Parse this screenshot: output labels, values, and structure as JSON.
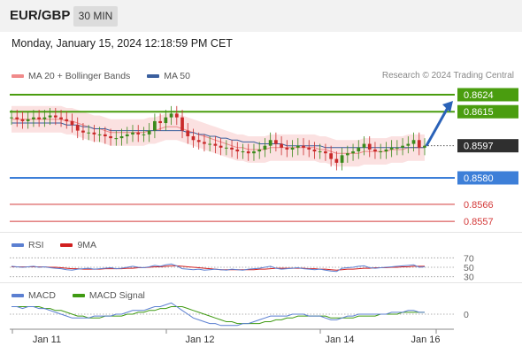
{
  "header": {
    "symbol": "EUR/GBP",
    "timeframe": "30 MIN",
    "datetime": "Monday, January 15, 2024 12:18:59 PM CET"
  },
  "legend": {
    "ma20_label": "MA 20 + Bollinger Bands",
    "ma20_color": "#f08a8a",
    "ma50_label": "MA 50",
    "ma50_color": "#3a5f9e",
    "research": "Research © 2024 Trading Central"
  },
  "rsi_legend": {
    "rsi_label": "RSI",
    "rsi_color": "#5b7fd1",
    "ma_label": "9MA",
    "ma_color": "#d11f1f"
  },
  "macd_legend": {
    "macd_label": "MACD",
    "macd_color": "#5b7fd1",
    "signal_label": "MACD Signal",
    "signal_color": "#3f9a12"
  },
  "chart_data": [
    {
      "type": "candlestick",
      "title": "EUR/GBP",
      "ylim": [
        0.855,
        0.863
      ],
      "x_ticks": [
        "Jan 11",
        "Jan 12",
        "Jan 14",
        "Jan 16"
      ],
      "current_price": "0.8597",
      "levels": [
        {
          "value": 0.8624,
          "label": "0.8624",
          "color": "#4a9d0f",
          "kind": "resistance"
        },
        {
          "value": 0.8615,
          "label": "0.8615",
          "color": "#4a9d0f",
          "kind": "resistance"
        },
        {
          "value": 0.858,
          "label": "0.8580",
          "color": "#3d7fd8",
          "kind": "pivot"
        },
        {
          "value": 0.8566,
          "label": "0.8566",
          "color": "#d43a3a",
          "kind": "support"
        },
        {
          "value": 0.8557,
          "label": "0.8557",
          "color": "#d43a3a",
          "kind": "support"
        }
      ],
      "projection": {
        "from": 0.8597,
        "to": 0.8624,
        "color": "#2a62b8"
      },
      "series_note": "approximate closes",
      "closes": [
        0.8612,
        0.8611,
        0.861,
        0.8611,
        0.8612,
        0.8611,
        0.8612,
        0.8613,
        0.8612,
        0.8611,
        0.861,
        0.8608,
        0.8605,
        0.8604,
        0.8604,
        0.8603,
        0.8603,
        0.8602,
        0.8601,
        0.8601,
        0.8602,
        0.8603,
        0.8604,
        0.8603,
        0.8603,
        0.8605,
        0.861,
        0.8609,
        0.8612,
        0.8614,
        0.8612,
        0.8605,
        0.8602,
        0.86,
        0.8599,
        0.8598,
        0.8598,
        0.8597,
        0.8596,
        0.8596,
        0.8595,
        0.8594,
        0.8594,
        0.8593,
        0.8594,
        0.8595,
        0.8597,
        0.86,
        0.8598,
        0.8596,
        0.8595,
        0.8596,
        0.8597,
        0.8596,
        0.8595,
        0.8594,
        0.8594,
        0.8593,
        0.859,
        0.8588,
        0.8592,
        0.8593,
        0.8594,
        0.8596,
        0.8598,
        0.8595,
        0.8594,
        0.8594,
        0.8595,
        0.8596,
        0.8596,
        0.8597,
        0.8598,
        0.86,
        0.8596,
        0.8597
      ],
      "ma20": [
        0.8611,
        0.8611,
        0.8611,
        0.8611,
        0.8611,
        0.8611,
        0.8611,
        0.8611,
        0.8611,
        0.8611,
        0.861,
        0.861,
        0.8609,
        0.8608,
        0.8607,
        0.8606,
        0.8606,
        0.8605,
        0.8604,
        0.8604,
        0.8604,
        0.8604,
        0.8604,
        0.8604,
        0.8604,
        0.8605,
        0.8605,
        0.8606,
        0.8607,
        0.8607,
        0.8607,
        0.8606,
        0.8605,
        0.8604,
        0.8603,
        0.8602,
        0.8601,
        0.86,
        0.8599,
        0.8598,
        0.8597,
        0.8596,
        0.8596,
        0.8595,
        0.8595,
        0.8595,
        0.8595,
        0.8596,
        0.8596,
        0.8596,
        0.8596,
        0.8596,
        0.8596,
        0.8596,
        0.8596,
        0.8596,
        0.8595,
        0.8595,
        0.8594,
        0.8593,
        0.8593,
        0.8593,
        0.8593,
        0.8593,
        0.8594,
        0.8594,
        0.8594,
        0.8594,
        0.8594,
        0.8595,
        0.8595,
        0.8595,
        0.8596,
        0.8596,
        0.8596,
        0.8596
      ],
      "ma50": [
        0.8609,
        0.8609,
        0.8609,
        0.8609,
        0.8609,
        0.8609,
        0.8609,
        0.8609,
        0.8609,
        0.8609,
        0.8608,
        0.8608,
        0.8608,
        0.8607,
        0.8607,
        0.8606,
        0.8606,
        0.8606,
        0.8605,
        0.8605,
        0.8605,
        0.8605,
        0.8605,
        0.8605,
        0.8605,
        0.8605,
        0.8605,
        0.8605,
        0.8605,
        0.8605,
        0.8605,
        0.8605,
        0.8604,
        0.8604,
        0.8603,
        0.8603,
        0.8602,
        0.8602,
        0.8601,
        0.8601,
        0.86,
        0.86,
        0.8599,
        0.8599,
        0.8599,
        0.8598,
        0.8598,
        0.8598,
        0.8598,
        0.8598,
        0.8597,
        0.8597,
        0.8597,
        0.8597,
        0.8597,
        0.8597,
        0.8597,
        0.8596,
        0.8596,
        0.8596,
        0.8596,
        0.8596,
        0.8596,
        0.8596,
        0.8596,
        0.8596,
        0.8596,
        0.8596,
        0.8596,
        0.8596,
        0.8596,
        0.8596,
        0.8596,
        0.8596,
        0.8596,
        0.8596
      ],
      "bb_width": 0.0007
    },
    {
      "type": "line",
      "title": "RSI",
      "ylim": [
        20,
        80
      ],
      "y_ticks": [
        "70",
        "50",
        "30"
      ],
      "rsi": [
        52,
        51,
        50,
        51,
        52,
        50,
        51,
        49,
        48,
        47,
        45,
        44,
        46,
        47,
        48,
        46,
        47,
        48,
        49,
        47,
        48,
        50,
        52,
        50,
        49,
        51,
        54,
        52,
        55,
        57,
        53,
        47,
        46,
        45,
        46,
        44,
        45,
        46,
        45,
        44,
        46,
        45,
        44,
        46,
        47,
        48,
        50,
        52,
        48,
        46,
        47,
        48,
        49,
        47,
        46,
        45,
        46,
        44,
        42,
        41,
        48,
        49,
        50,
        52,
        53,
        49,
        48,
        49,
        50,
        51,
        52,
        53,
        54,
        55,
        50,
        51
      ],
      "ma9": [
        51,
        51,
        51,
        51,
        51,
        51,
        51,
        50,
        50,
        49,
        48,
        47,
        47,
        46,
        46,
        46,
        46,
        47,
        47,
        47,
        47,
        48,
        48,
        49,
        49,
        50,
        51,
        51,
        52,
        53,
        53,
        52,
        51,
        50,
        49,
        48,
        47,
        46,
        45,
        45,
        45,
        45,
        45,
        45,
        45,
        46,
        46,
        47,
        48,
        48,
        48,
        48,
        48,
        48,
        47,
        47,
        46,
        46,
        45,
        44,
        45,
        46,
        46,
        47,
        48,
        48,
        49,
        49,
        49,
        50,
        50,
        51,
        51,
        52,
        52,
        52
      ]
    },
    {
      "type": "line",
      "title": "MACD",
      "y_ticks": [
        "0"
      ],
      "ylim": [
        -0.0008,
        0.0008
      ],
      "macd": [
        0.0004,
        0.0004,
        0.0003,
        0.0004,
        0.0004,
        0.0003,
        0.0003,
        0.0002,
        0.0001,
        0.0,
        -0.0001,
        -0.0002,
        -0.0002,
        -0.0002,
        -0.0002,
        -0.0001,
        -0.0001,
        -0.0001,
        -0.0001,
        0.0,
        0.0,
        0.0001,
        0.0002,
        0.0002,
        0.0002,
        0.0003,
        0.0004,
        0.0004,
        0.0005,
        0.0006,
        0.0004,
        0.0002,
        0.0,
        -0.0002,
        -0.0003,
        -0.0004,
        -0.0005,
        -0.0005,
        -0.0006,
        -0.0006,
        -0.0006,
        -0.0006,
        -0.0005,
        -0.0005,
        -0.0004,
        -0.0003,
        -0.0002,
        -0.0001,
        -0.0001,
        -0.0001,
        -0.0001,
        0.0,
        0.0,
        0.0,
        -0.0001,
        -0.0001,
        -0.0001,
        -0.0002,
        -0.0003,
        -0.0003,
        -0.0002,
        -0.0001,
        -0.0001,
        0.0,
        0.0,
        0.0,
        0.0,
        0.0,
        0.0,
        0.0001,
        0.0001,
        0.0001,
        0.0002,
        0.0002,
        0.0001,
        0.0001
      ],
      "signal": [
        0.0004,
        0.0004,
        0.0004,
        0.0004,
        0.0004,
        0.0004,
        0.0003,
        0.0003,
        0.0002,
        0.0002,
        0.0001,
        0.0,
        -0.0001,
        -0.0001,
        -0.0002,
        -0.0002,
        -0.0002,
        -0.0001,
        -0.0001,
        -0.0001,
        -0.0001,
        0.0,
        0.0,
        0.0001,
        0.0001,
        0.0002,
        0.0002,
        0.0003,
        0.0003,
        0.0004,
        0.0004,
        0.0004,
        0.0003,
        0.0002,
        0.0001,
        0.0,
        -0.0001,
        -0.0002,
        -0.0003,
        -0.0004,
        -0.0004,
        -0.0005,
        -0.0005,
        -0.0005,
        -0.0005,
        -0.0005,
        -0.0004,
        -0.0004,
        -0.0003,
        -0.0003,
        -0.0002,
        -0.0002,
        -0.0001,
        -0.0001,
        -0.0001,
        -0.0001,
        -0.0001,
        -0.0001,
        -0.0002,
        -0.0002,
        -0.0002,
        -0.0002,
        -0.0002,
        -0.0001,
        -0.0001,
        -0.0001,
        -0.0001,
        0.0,
        0.0,
        0.0,
        0.0,
        0.0001,
        0.0001,
        0.0001,
        0.0001,
        0.0001
      ]
    }
  ]
}
